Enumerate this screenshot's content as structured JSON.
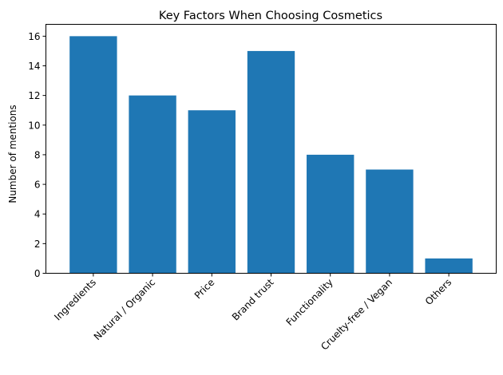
{
  "chart_data": {
    "type": "bar",
    "title": "Key Factors When Choosing Cosmetics",
    "xlabel": "",
    "ylabel": "Number of mentions",
    "categories": [
      "Ingredients",
      "Natural / Organic",
      "Price",
      "Brand trust",
      "Functionality",
      "Cruelty-free / Vegan",
      "Others"
    ],
    "values": [
      16,
      12,
      11,
      15,
      8,
      7,
      1
    ],
    "ylim": [
      0,
      16.8
    ],
    "yticks": [
      0,
      2,
      4,
      6,
      8,
      10,
      12,
      14,
      16
    ],
    "bar_color": "#1f77b4",
    "grid": false,
    "legend": "none"
  }
}
